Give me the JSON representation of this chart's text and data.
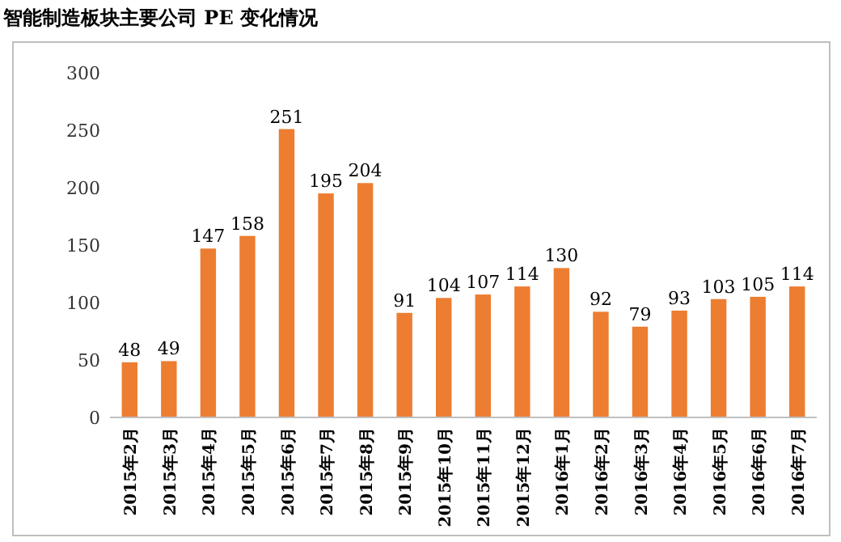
{
  "chart_data": {
    "type": "bar",
    "title": "智能制造板块主要公司 PE 变化情况",
    "categories": [
      "2015年2月",
      "2015年3月",
      "2015年4月",
      "2015年5月",
      "2015年6月",
      "2015年7月",
      "2015年8月",
      "2015年9月",
      "2015年10月",
      "2015年11月",
      "2015年12月",
      "2016年1月",
      "2016年2月",
      "2016年3月",
      "2016年4月",
      "2016年5月",
      "2016年6月",
      "2016年7月"
    ],
    "values": [
      48,
      49,
      147,
      158,
      251,
      195,
      204,
      91,
      104,
      107,
      114,
      130,
      92,
      79,
      93,
      103,
      105,
      114
    ],
    "color": "#ed7d31",
    "ylim": [
      0,
      300
    ],
    "yticks": [
      0,
      50,
      100,
      150,
      200,
      250,
      300
    ],
    "data_labels": true
  }
}
